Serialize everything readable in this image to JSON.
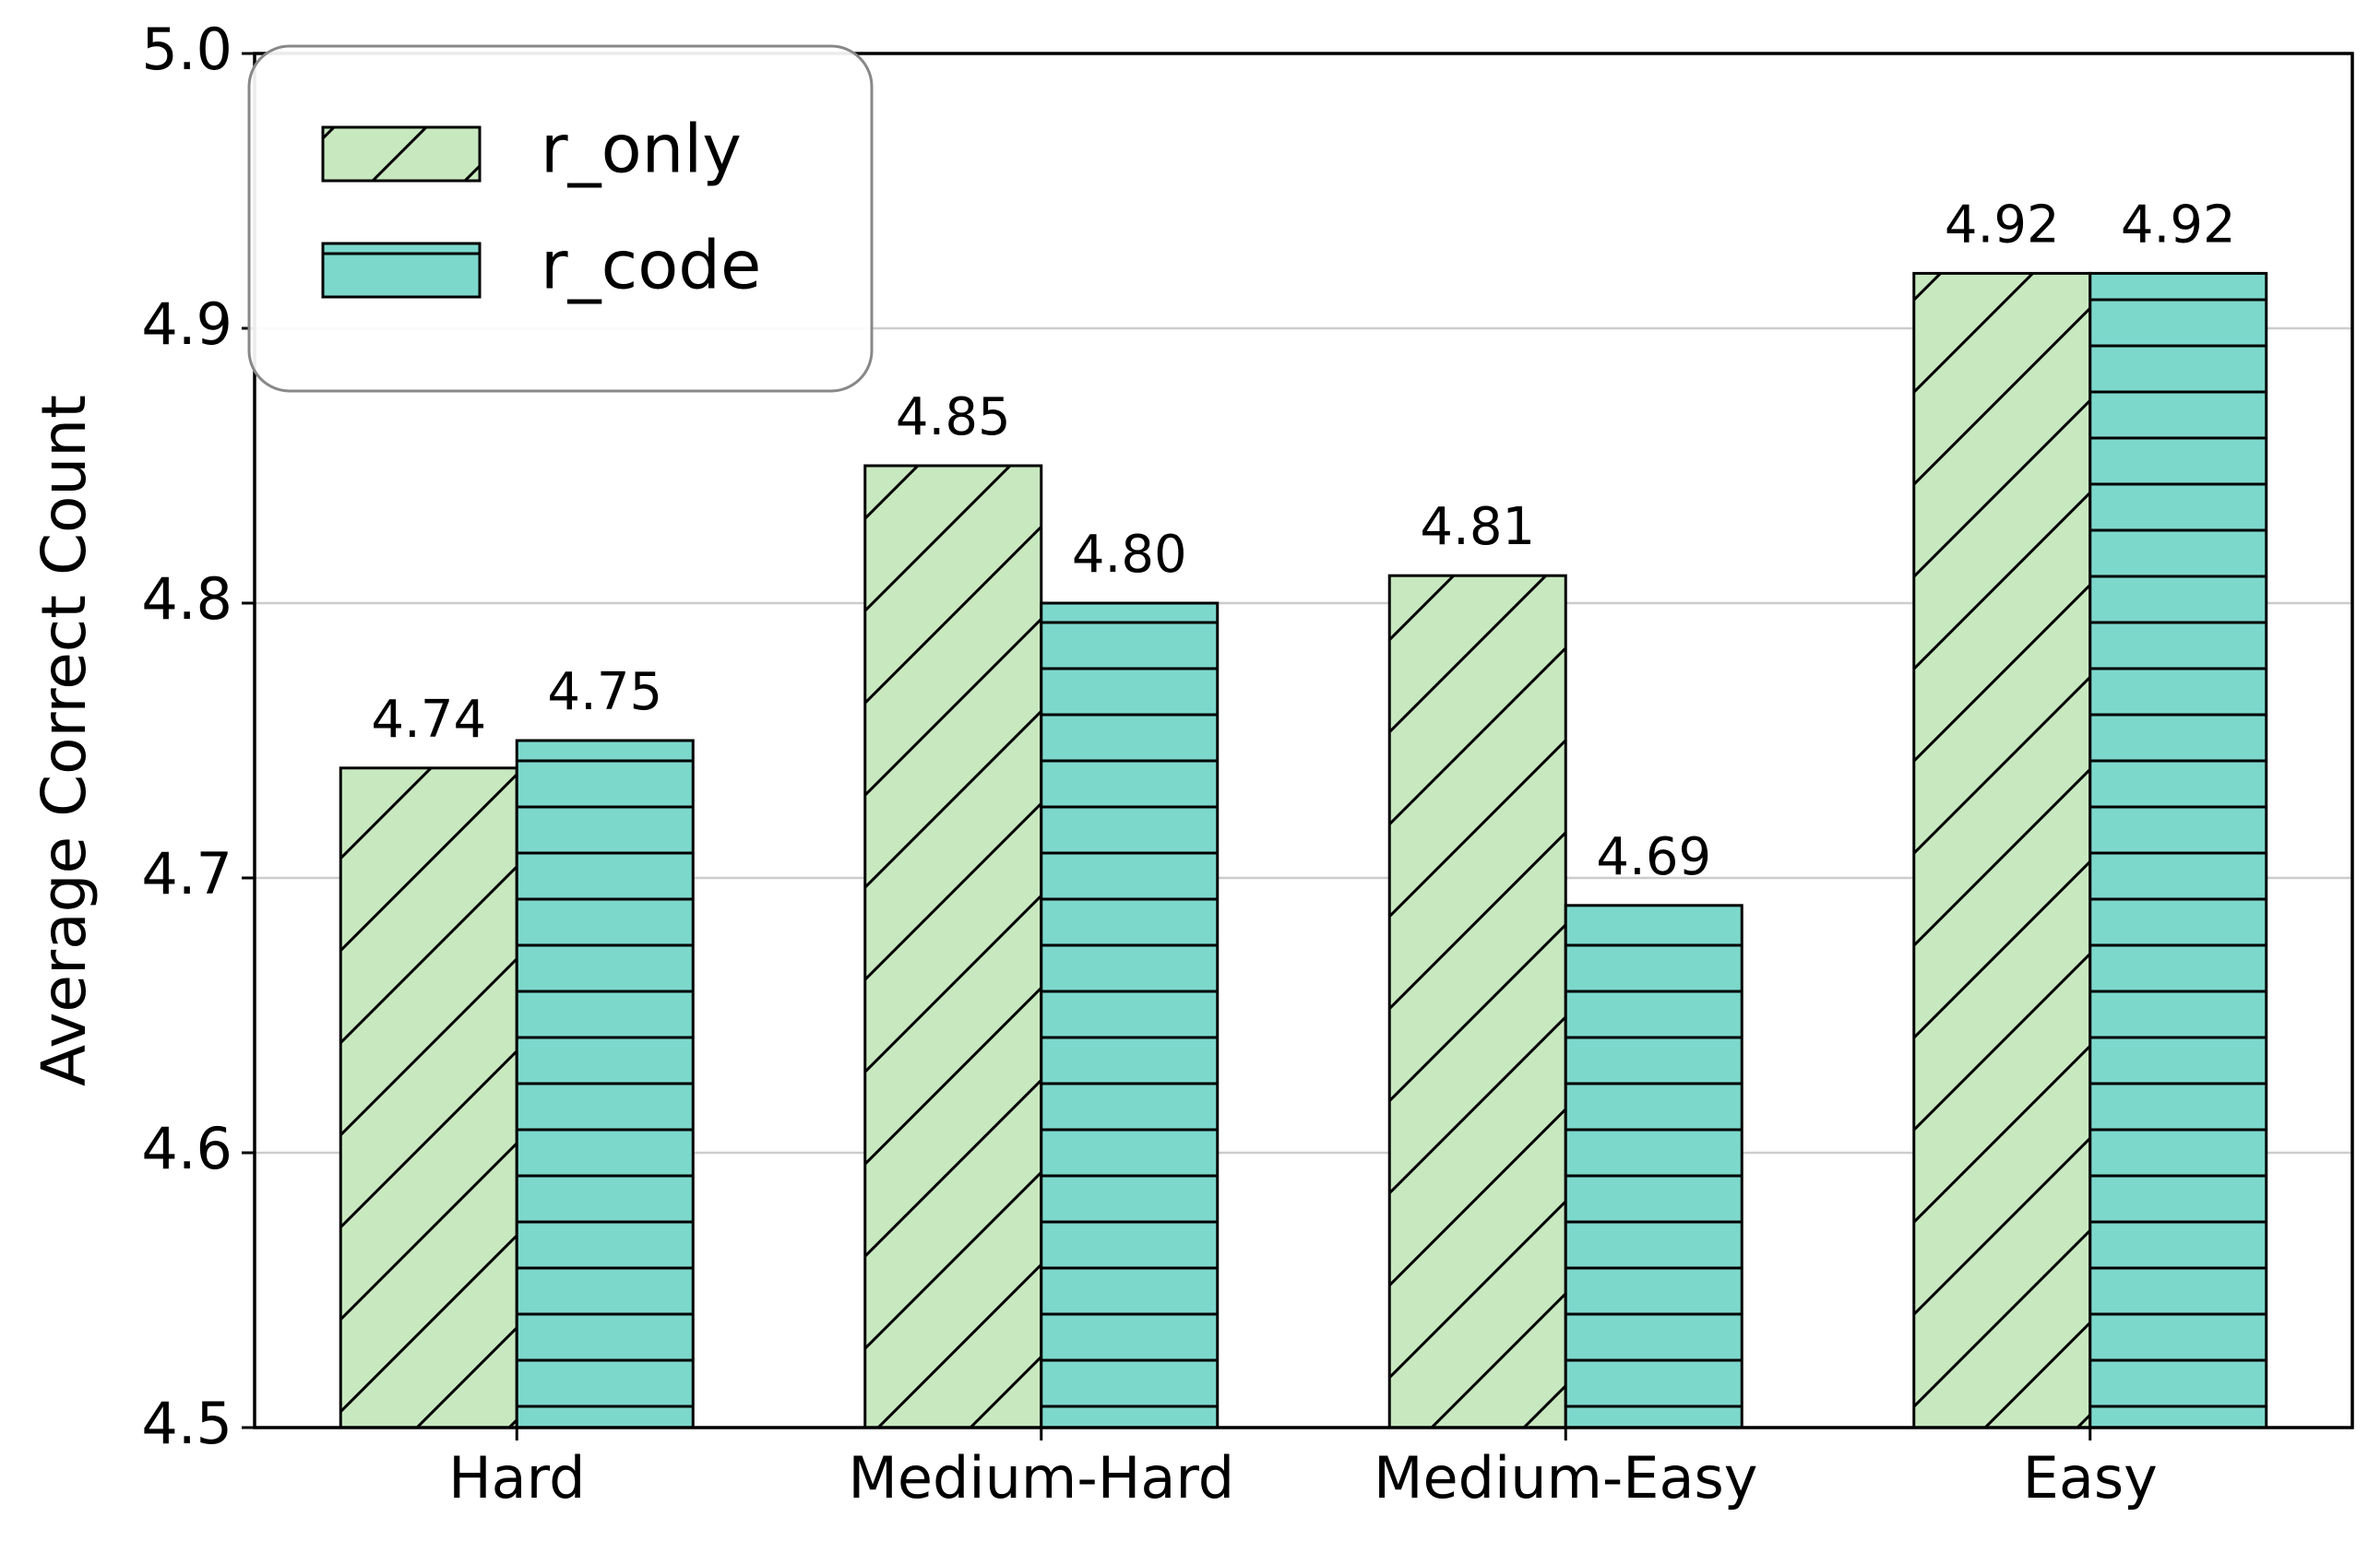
{
  "chart_data": {
    "type": "bar",
    "categories": [
      "Hard",
      "Medium-Hard",
      "Medium-Easy",
      "Easy"
    ],
    "series": [
      {
        "name": "r_only",
        "values": [
          4.74,
          4.85,
          4.81,
          4.92
        ],
        "color": "#c8e8c0",
        "hatch": "diagonal"
      },
      {
        "name": "r_code",
        "values": [
          4.75,
          4.8,
          4.69,
          4.92
        ],
        "color": "#7dd8cc",
        "hatch": "horizontal"
      }
    ],
    "data_labels": [
      [
        "4.74",
        "4.85",
        "4.81",
        "4.92"
      ],
      [
        "4.75",
        "4.80",
        "4.69",
        "4.92"
      ]
    ],
    "ylabel": "Average Correct Count",
    "ylim": [
      4.5,
      5.0
    ],
    "yticks": [
      "4.5",
      "4.6",
      "4.7",
      "4.8",
      "4.9",
      "5.0"
    ],
    "grid": "y",
    "legend": "top-left"
  }
}
